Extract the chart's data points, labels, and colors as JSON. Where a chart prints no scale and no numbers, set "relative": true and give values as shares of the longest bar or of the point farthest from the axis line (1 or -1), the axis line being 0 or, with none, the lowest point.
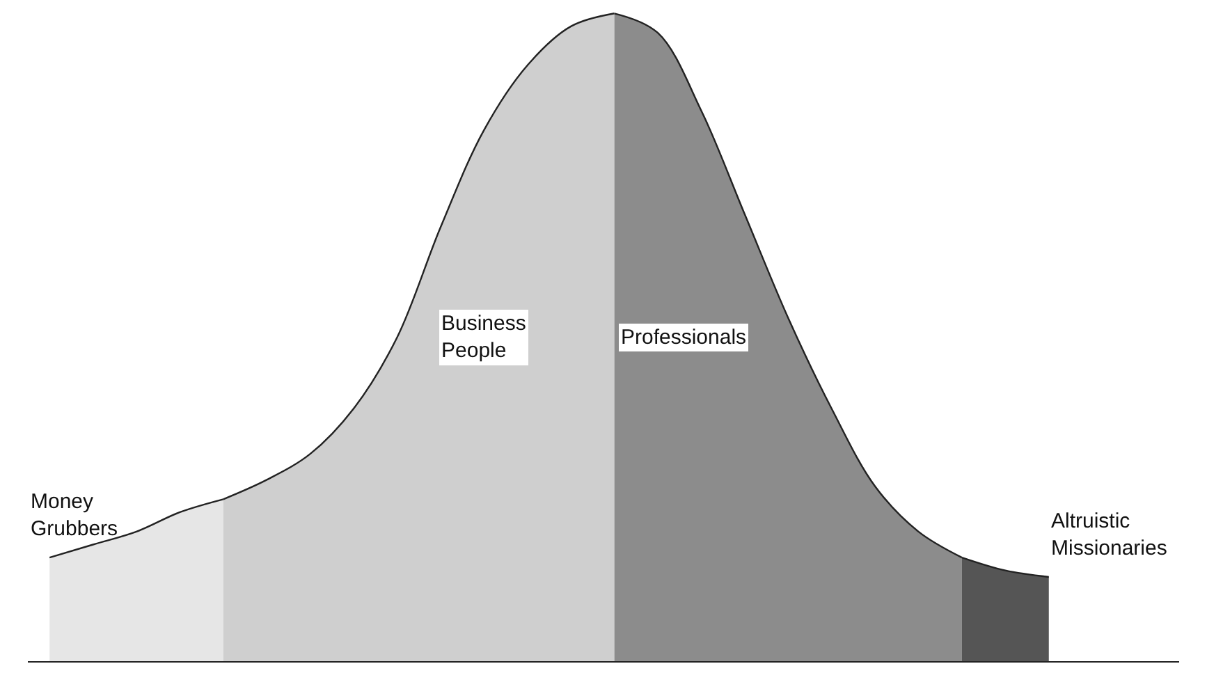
{
  "chart_data": {
    "type": "area",
    "relative": true,
    "legend": false,
    "categories": [
      null,
      null,
      null,
      null,
      null,
      null,
      null,
      null,
      null,
      null,
      null,
      null,
      null,
      null,
      null,
      null,
      null,
      null,
      null,
      null,
      null,
      null,
      null,
      null
    ],
    "series": [
      {
        "name": "Money\nGrubbers",
        "color": "#e6e6e6",
        "values": [
          0.16,
          0.18,
          0.2,
          0.23,
          0.25,
          null,
          null,
          null,
          null,
          null,
          null,
          null,
          null,
          null,
          null,
          null,
          null,
          null,
          null,
          null,
          null,
          null,
          null,
          null
        ]
      },
      {
        "name": "Business\nPeople",
        "color": "#cfcfcf",
        "values": [
          null,
          null,
          null,
          null,
          0.25,
          0.28,
          0.32,
          0.39,
          0.5,
          0.67,
          0.82,
          0.92,
          0.98,
          1.0,
          null,
          null,
          null,
          null,
          null,
          null,
          null,
          null,
          null,
          null
        ]
      },
      {
        "name": "Professionals",
        "color": "#8c8c8c",
        "values": [
          null,
          null,
          null,
          null,
          null,
          null,
          null,
          null,
          null,
          null,
          null,
          null,
          null,
          1.0,
          0.97,
          0.85,
          0.69,
          0.53,
          0.39,
          0.27,
          0.2,
          0.16,
          null,
          null
        ]
      },
      {
        "name": "Altruistic\nMissionaries",
        "color": "#555555",
        "values": [
          null,
          null,
          null,
          null,
          null,
          null,
          null,
          null,
          null,
          null,
          null,
          null,
          null,
          null,
          null,
          null,
          null,
          null,
          null,
          null,
          null,
          0.16,
          0.14,
          0.13
        ]
      }
    ]
  }
}
